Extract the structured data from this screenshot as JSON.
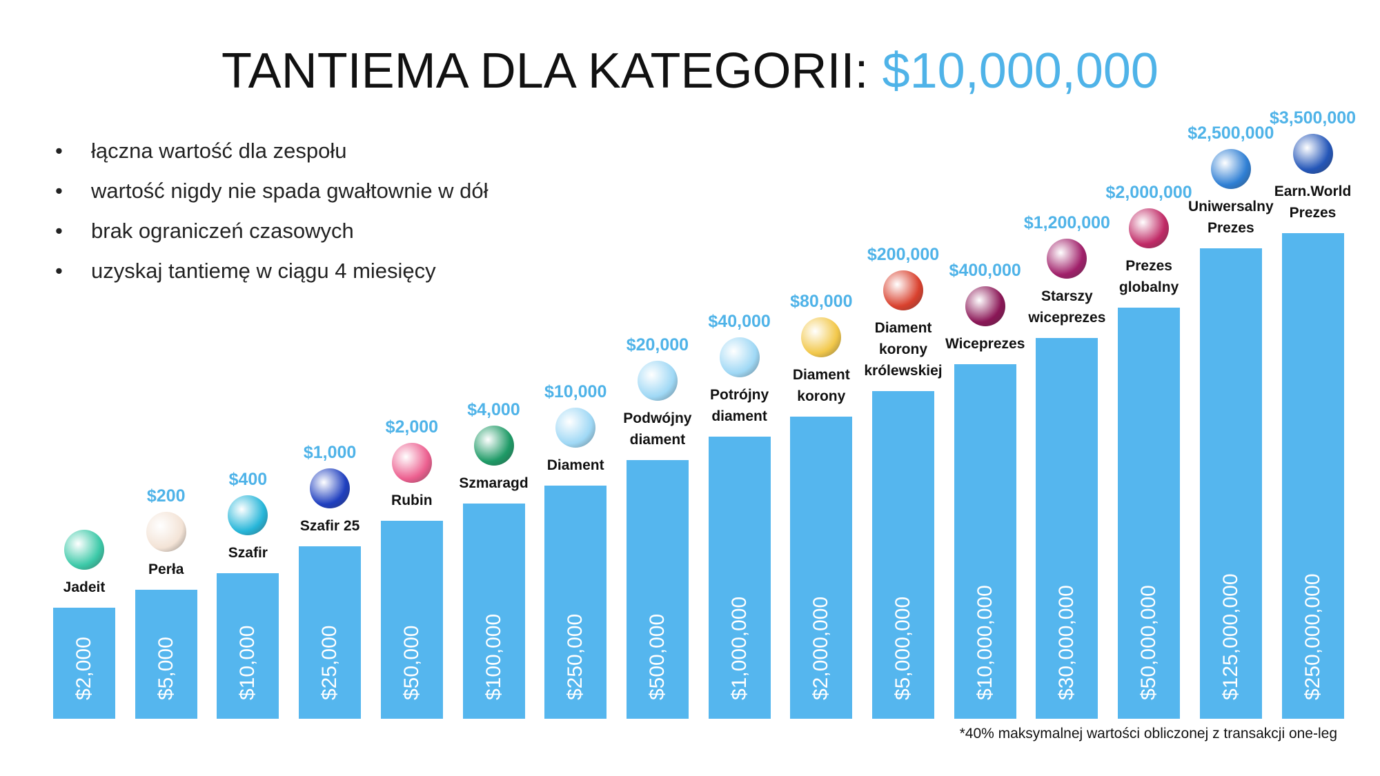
{
  "header": {
    "title": "TANTIEMA DLA KATEGORII:",
    "amount": "$10,000,000"
  },
  "bullets": [
    "łączna wartość dla zespołu",
    "wartość nigdy nie spada gwałtownie w dół",
    "brak ograniczeń czasowych",
    "uzyskaj tantiemę w ciągu 4 miesięcy"
  ],
  "ranks": [
    {
      "name": "Jadeit",
      "reward": "",
      "threshold": "$2,000"
    },
    {
      "name": "Perła",
      "reward": "$200",
      "threshold": "$5,000"
    },
    {
      "name": "Szafir",
      "reward": "$400",
      "threshold": "$10,000"
    },
    {
      "name": "Szafir 25",
      "reward": "$1,000",
      "threshold": "$25,000"
    },
    {
      "name": "Rubin",
      "reward": "$2,000",
      "threshold": "$50,000"
    },
    {
      "name": "Szmaragd",
      "reward": "$4,000",
      "threshold": "$100,000"
    },
    {
      "name": "Diament",
      "reward": "$10,000",
      "threshold": "$250,000"
    },
    {
      "name": "Podwójny diament",
      "reward": "$20,000",
      "threshold": "$500,000"
    },
    {
      "name": "Potrójny diament",
      "reward": "$40,000",
      "threshold": "$1,000,000"
    },
    {
      "name": "Diament korony",
      "reward": "$80,000",
      "threshold": "$2,000,000"
    },
    {
      "name": "Diament korony królewskiej",
      "reward": "$200,000",
      "threshold": "$5,000,000"
    },
    {
      "name": "Wiceprezes",
      "reward": "$400,000",
      "threshold": "$10,000,000"
    },
    {
      "name": "Starszy wiceprezes",
      "reward": "$1,200,000",
      "threshold": "$30,000,000"
    },
    {
      "name": "Prezes globalny",
      "reward": "$2,000,000",
      "threshold": "$50,000,000"
    },
    {
      "name": "Uniwersalny Prezes",
      "reward": "$2,500,000",
      "threshold": "$125,000,000"
    },
    {
      "name": "Earn.World Prezes",
      "reward": "$3,500,000",
      "threshold": "$250,000,000"
    }
  ],
  "footnote": "*40% maksymalnej wartości obliczonej z transakcji one-leg"
}
